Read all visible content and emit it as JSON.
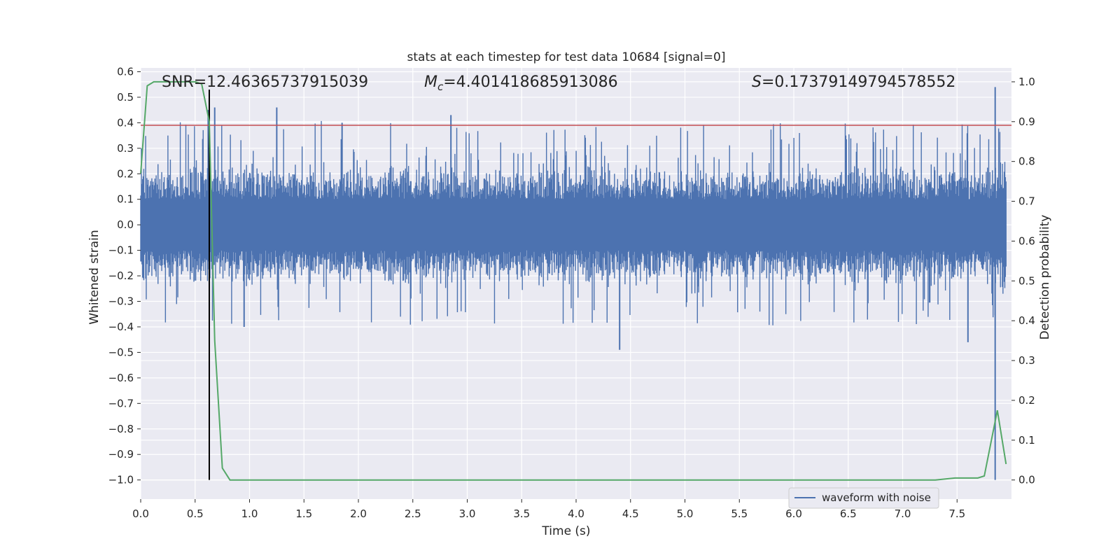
{
  "chart_data": {
    "type": "line",
    "title": "stats at each timestep for test data 10684 [signal=0]",
    "xlabel": "Time (s)",
    "ylabel": "Whitened strain",
    "y2label": "Detection probability",
    "xlim": [
      0.0,
      8.0
    ],
    "ylim": [
      -1.075,
      0.615
    ],
    "y2lim": [
      -0.048,
      1.035
    ],
    "xticks": [
      "0.0",
      "0.5",
      "1.0",
      "1.5",
      "2.0",
      "2.5",
      "3.0",
      "3.5",
      "4.0",
      "4.5",
      "5.0",
      "5.5",
      "6.0",
      "6.5",
      "7.0",
      "7.5"
    ],
    "yticks": [
      "0.6",
      "0.5",
      "0.4",
      "0.3",
      "0.2",
      "0.1",
      "0.0",
      "−0.1",
      "−0.2",
      "−0.3",
      "−0.4",
      "−0.5",
      "−0.6",
      "−0.7",
      "−0.8",
      "−0.9",
      "−1.0"
    ],
    "y2ticks": [
      "1.0",
      "0.9",
      "0.8",
      "0.7",
      "0.6",
      "0.5",
      "0.4",
      "0.3",
      "0.2",
      "0.1",
      "0.0"
    ],
    "grid": true,
    "legend_position": "lower-right",
    "annotations": {
      "snr": "SNR=12.46365737915039",
      "mc_symbol": "M",
      "mc_sub": "c",
      "mc_value": "=4.401418685913086",
      "s_symbol": "S",
      "s_value": "=0.17379149794578552"
    },
    "series": [
      {
        "name": "waveform with noise",
        "color": "#4c72b0",
        "axis": "left",
        "envelope": {
          "core": 0.1,
          "typical_peak": 0.25,
          "max_peak": 0.46
        },
        "spikes": [
          {
            "t": 0.62,
            "y": 0.45
          },
          {
            "t": 0.68,
            "y": 0.46
          },
          {
            "t": 1.25,
            "y": 0.46
          },
          {
            "t": 1.85,
            "y": 0.4
          },
          {
            "t": 2.85,
            "y": 0.43
          },
          {
            "t": 4.4,
            "y": -0.49
          },
          {
            "t": 0.95,
            "y": -0.4
          },
          {
            "t": 7.6,
            "y": -0.46
          },
          {
            "t": 7.85,
            "y": 0.54
          },
          {
            "t": 7.85,
            "y": -1.0
          }
        ]
      },
      {
        "name": "",
        "color": "#55a868",
        "axis": "right",
        "x": [
          0.0,
          0.06,
          0.12,
          0.2,
          0.35,
          0.5,
          0.56,
          0.63,
          0.68,
          0.75,
          0.82,
          0.9,
          1.0,
          2.0,
          3.0,
          4.0,
          5.0,
          6.0,
          6.8,
          7.3,
          7.48,
          7.6,
          7.69,
          7.75,
          7.87,
          7.95
        ],
        "y": [
          0.77,
          0.99,
          1.0,
          1.0,
          1.0,
          1.0,
          0.995,
          0.9,
          0.35,
          0.03,
          0.0,
          0.0,
          0.0,
          0.0,
          0.0,
          0.0,
          0.0,
          0.0,
          0.0,
          0.0,
          0.005,
          0.005,
          0.005,
          0.01,
          0.175,
          0.04
        ]
      }
    ],
    "threshold": {
      "value": 0.39,
      "color": "#c44e52",
      "axis": "left"
    },
    "vline": {
      "t": 0.63,
      "ymin": -1.0,
      "ymax": 0.53,
      "color": "#000000"
    }
  }
}
